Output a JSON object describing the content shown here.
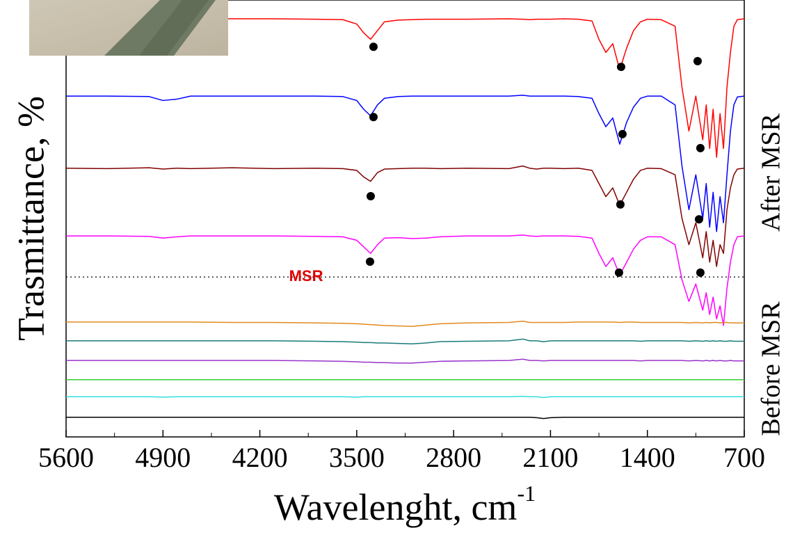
{
  "chart_data": {
    "type": "line",
    "x_label": "Wavelenght, cm",
    "x_label_sup": "-1",
    "y_label": "Trasmittance, %",
    "side_labels": [
      "After MSR",
      "Before MSR"
    ],
    "annotation": {
      "text": "MSR",
      "x": 3866,
      "y": 36.6,
      "color": "#e00000"
    },
    "reference_line": {
      "y": 36.6,
      "style": "dotted"
    },
    "xlim": [
      5600,
      700
    ],
    "ylim": [
      0,
      100
    ],
    "xticks": [
      5600,
      4900,
      4200,
      3500,
      2800,
      2100,
      1400,
      700
    ],
    "xminorticks": [
      5250,
      4550,
      3850,
      3150,
      2450,
      1750,
      1050
    ],
    "x": [
      5600,
      5300,
      5000,
      4900,
      4800,
      4700,
      4400,
      4100,
      3800,
      3600,
      3500,
      3450,
      3400,
      3350,
      3300,
      3200,
      3100,
      3000,
      2900,
      2700,
      2400,
      2300,
      2250,
      2200,
      2150,
      2100,
      2000,
      1900,
      1800,
      1750,
      1700,
      1650,
      1600,
      1550,
      1500,
      1450,
      1400,
      1300,
      1200,
      1150,
      1100,
      1050,
      1000,
      975,
      950,
      925,
      900,
      875,
      850,
      825,
      800,
      775,
      750,
      700
    ],
    "series": [
      {
        "color": "#ff0000",
        "values": [
          95.7,
          95.7,
          95.6,
          95.6,
          95.7,
          95.7,
          95.7,
          95.7,
          95.6,
          95.5,
          94.5,
          92.5,
          91,
          93,
          95,
          95.4,
          95.5,
          95.6,
          95.6,
          95.6,
          95.7,
          95.6,
          95.5,
          95.6,
          95.6,
          95.6,
          95.7,
          95.6,
          95.2,
          91,
          88,
          90,
          84,
          89,
          93,
          95,
          95.6,
          95.5,
          94,
          80,
          70,
          78,
          68,
          76,
          66,
          75,
          64,
          74,
          66,
          80,
          88,
          94,
          95.5,
          95.7
        ]
      },
      {
        "color": "#0000ff",
        "values": [
          78,
          78,
          77.9,
          77,
          77.3,
          78,
          78,
          78,
          78,
          77.9,
          77,
          75,
          73.5,
          76,
          77.5,
          77.9,
          78,
          78,
          78,
          78,
          78,
          78.2,
          78,
          78,
          78,
          78,
          78,
          77.9,
          77.5,
          74,
          71,
          73,
          67,
          72,
          75.5,
          77.5,
          78,
          78,
          76,
          62,
          52,
          60,
          50,
          58,
          48,
          56,
          47,
          55,
          49,
          60,
          70,
          76,
          77.8,
          78
        ]
      },
      {
        "color": "#800000",
        "values": [
          61.5,
          61.4,
          61.6,
          61.3,
          61.5,
          61.4,
          61.6,
          61.4,
          61.5,
          61.4,
          61,
          59.5,
          58.5,
          60.5,
          61.3,
          61.4,
          61.5,
          61.5,
          61.4,
          61.5,
          61.4,
          62,
          61.5,
          61.3,
          61.5,
          61.5,
          61.4,
          61.5,
          61,
          58,
          55,
          57,
          53,
          56,
          59,
          61,
          61.5,
          61.4,
          60,
          50,
          44,
          49,
          41,
          47,
          40,
          45,
          39,
          44,
          42,
          52,
          57,
          60,
          61.3,
          61.5
        ]
      },
      {
        "color": "#ff00ff",
        "values": [
          46,
          46,
          45.9,
          45.5,
          45.8,
          46,
          46,
          46,
          45.9,
          45.8,
          45,
          43.5,
          42,
          44,
          45.5,
          45.6,
          45.4,
          45.5,
          45.8,
          46,
          46,
          46.2,
          46,
          45.9,
          46,
          46,
          46,
          45.9,
          45.5,
          42,
          39,
          41,
          37,
          40,
          43,
          45,
          45.8,
          45.8,
          44,
          36,
          31,
          35,
          29,
          33,
          28,
          32,
          27,
          30,
          25.5,
          34,
          40,
          44,
          45.8,
          46
        ]
      },
      {
        "color": "#e08a1e",
        "values": [
          26.3,
          26.3,
          26.3,
          26.3,
          26.3,
          26.3,
          26.2,
          26.2,
          26.1,
          26,
          25.9,
          25.8,
          25.7,
          25.6,
          25.5,
          25.4,
          25.3,
          25.6,
          25.9,
          26.1,
          26.2,
          26.5,
          26.2,
          26.2,
          26.2,
          26.2,
          26.2,
          26.3,
          26.3,
          26.3,
          26.3,
          26.3,
          26.2,
          26.3,
          26.3,
          26.2,
          26.2,
          26.2,
          26.2,
          26.2,
          26.1,
          26.2,
          26.1,
          26.2,
          26.1,
          26.2,
          26.2,
          26.1,
          26.2,
          26.2,
          26.1,
          26.1,
          26.1,
          26.1
        ]
      },
      {
        "color": "#1a7a7a",
        "values": [
          22,
          22,
          22,
          22,
          22,
          22,
          22,
          22,
          21.9,
          21.8,
          21.7,
          21.6,
          21.6,
          21.5,
          21.5,
          21.4,
          21.3,
          21.5,
          21.8,
          21.9,
          22,
          22.4,
          22,
          22,
          21.8,
          22,
          22,
          22,
          22,
          22,
          22,
          22,
          22,
          22,
          22,
          21.9,
          22,
          22,
          22,
          22,
          21.9,
          22,
          21.9,
          22,
          21.9,
          22,
          21.9,
          22,
          21.9,
          21.9,
          22,
          21.9,
          21.9,
          21.9
        ]
      },
      {
        "color": "#9933cc",
        "values": [
          17.5,
          17.5,
          17.5,
          17.5,
          17.5,
          17.5,
          17.5,
          17.5,
          17.4,
          17.3,
          17.2,
          17.1,
          17.1,
          17,
          17,
          16.9,
          16.9,
          17.1,
          17.3,
          17.4,
          17.5,
          17.8,
          17.5,
          17.5,
          17.4,
          17.5,
          17.5,
          17.5,
          17.5,
          17.5,
          17.5,
          17.5,
          17.5,
          17.5,
          17.5,
          17.4,
          17.5,
          17.5,
          17.5,
          17.5,
          17.4,
          17.5,
          17.4,
          17.5,
          17.4,
          17.5,
          17.4,
          17.5,
          17.4,
          17.4,
          17.5,
          17.4,
          17.4,
          17.4
        ]
      },
      {
        "color": "#33cc33",
        "values": [
          13.1,
          13.1,
          13.1,
          13.1,
          13.1,
          13.1,
          13.1,
          13.1,
          13.1,
          13.1,
          13.1,
          13.1,
          13.1,
          13.1,
          13.1,
          13.1,
          13.1,
          13.1,
          13.1,
          13.1,
          13.1,
          13.1,
          13.1,
          13.1,
          13.1,
          13.1,
          13.1,
          13.1,
          13.1,
          13.1,
          13.1,
          13.1,
          13.1,
          13.1,
          13.1,
          13.1,
          13.1,
          13.1,
          13.1,
          13.1,
          13.1,
          13.1,
          13.1,
          13.1,
          13.1,
          13.1,
          13.1,
          13.1,
          13.1,
          13.1,
          13.1,
          13.1,
          13.1,
          13.1
        ]
      },
      {
        "color": "#33dddd",
        "values": [
          9.2,
          9.2,
          9.2,
          9.1,
          9.2,
          9.2,
          9.2,
          9.2,
          9.2,
          9.2,
          9.1,
          9.2,
          9.2,
          9.2,
          9.2,
          9.2,
          9.2,
          9.2,
          9.2,
          9.2,
          9.2,
          9.3,
          9.2,
          9.2,
          9,
          9.2,
          9.2,
          9.2,
          9.2,
          9.2,
          9.2,
          9.2,
          9.2,
          9.2,
          9.2,
          9.2,
          9.2,
          9.2,
          9.2,
          9.2,
          9.2,
          9.2,
          9.2,
          9.2,
          9.2,
          9.2,
          9.2,
          9.2,
          9.2,
          9.2,
          9.2,
          9.2,
          9.2,
          9.2
        ]
      },
      {
        "color": "#000000",
        "values": [
          4.5,
          4.5,
          4.5,
          4.5,
          4.5,
          4.5,
          4.5,
          4.5,
          4.5,
          4.5,
          4.5,
          4.5,
          4.5,
          4.5,
          4.5,
          4.5,
          4.5,
          4.5,
          4.5,
          4.5,
          4.5,
          4.5,
          4.5,
          4.4,
          4.2,
          4.4,
          4.5,
          4.5,
          4.5,
          4.5,
          4.5,
          4.5,
          4.5,
          4.5,
          4.5,
          4.5,
          4.5,
          4.5,
          4.5,
          4.5,
          4.5,
          4.5,
          4.5,
          4.5,
          4.5,
          4.5,
          4.5,
          4.5,
          4.5,
          4.5,
          4.5,
          4.5,
          4.5,
          4.5
        ]
      }
    ],
    "peaks": {
      "color": "#000000",
      "x": [
        3379,
        1590,
        1037,
        3379,
        1580,
        1017,
        3399,
        1595,
        1027,
        3404,
        1605,
        1017
      ],
      "y": [
        89.3,
        84.7,
        86,
        73.2,
        69.3,
        66.1,
        55.1,
        53.2,
        49.8,
        40.1,
        37.6,
        37.6
      ]
    }
  }
}
